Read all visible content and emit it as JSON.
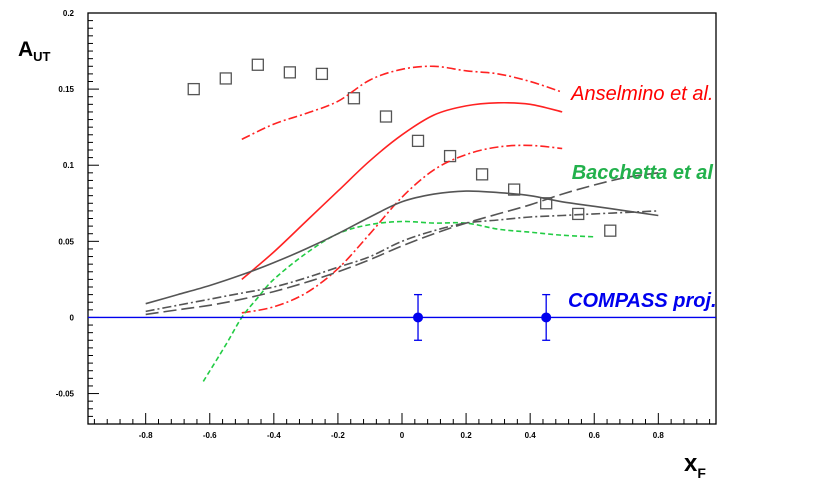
{
  "chart_data": {
    "type": "line",
    "xlabel": "x",
    "xlabel_sub": "F",
    "ylabel": "A",
    "ylabel_sub": "UT",
    "xlim": [
      -0.98,
      0.98
    ],
    "ylim": [
      -0.07,
      0.2
    ],
    "x_tick_labels": [
      {
        "value": -0.8,
        "label": "-0.8"
      },
      {
        "value": -0.6,
        "label": "-0.6"
      },
      {
        "value": -0.4,
        "label": "-0.4"
      },
      {
        "value": -0.2,
        "label": "-0.2"
      },
      {
        "value": 0,
        "label": "0"
      },
      {
        "value": 0.2,
        "label": "0.2"
      },
      {
        "value": 0.4,
        "label": "0.4"
      },
      {
        "value": 0.6,
        "label": "0.6"
      },
      {
        "value": 0.8,
        "label": "0.8"
      }
    ],
    "y_tick_labels": [
      {
        "value": -0.05,
        "label": "-0.05"
      },
      {
        "value": 0,
        "label": "0"
      },
      {
        "value": 0.05,
        "label": "0.05"
      },
      {
        "value": 0.1,
        "label": "0.1"
      },
      {
        "value": 0.15,
        "label": "0.15"
      },
      {
        "value": 0.2,
        "label": "0.2"
      }
    ],
    "grid": false,
    "annotations": [
      {
        "text": "Anselmino et al.",
        "color": "#ff0000",
        "x": 0.75,
        "y": 0.143
      },
      {
        "text": "Bacchetta et al",
        "color": "#22b14c",
        "x": 0.75,
        "y": 0.091
      },
      {
        "text": "COMPASS proj.",
        "color": "#0000ee",
        "x": 0.75,
        "y": 0.007
      }
    ],
    "series": [
      {
        "style": "squares",
        "color": "#555555",
        "x": [
          -0.65,
          -0.55,
          -0.45,
          -0.35,
          -0.25,
          -0.15,
          -0.05,
          0.05,
          0.15,
          0.25,
          0.35,
          0.45,
          0.55,
          0.65
        ],
        "y": [
          0.15,
          0.157,
          0.166,
          0.161,
          0.16,
          0.144,
          0.132,
          0.116,
          0.106,
          0.094,
          0.084,
          0.075,
          0.068,
          0.057
        ]
      },
      {
        "style": "solid",
        "color": "#ff2222",
        "x": [
          -0.5,
          -0.4,
          -0.3,
          -0.2,
          -0.1,
          0.0,
          0.1,
          0.2,
          0.3,
          0.4,
          0.5
        ],
        "y": [
          0.025,
          0.043,
          0.063,
          0.083,
          0.103,
          0.12,
          0.133,
          0.139,
          0.141,
          0.14,
          0.135
        ]
      },
      {
        "style": "dashdot",
        "color": "#ff2222",
        "x": [
          -0.5,
          -0.4,
          -0.3,
          -0.2,
          -0.1,
          0.0,
          0.1,
          0.2,
          0.3,
          0.4,
          0.5
        ],
        "y": [
          0.117,
          0.127,
          0.134,
          0.142,
          0.156,
          0.163,
          0.165,
          0.162,
          0.16,
          0.155,
          0.148
        ]
      },
      {
        "style": "dashdot",
        "color": "#ff2222",
        "x": [
          -0.5,
          -0.4,
          -0.3,
          -0.2,
          -0.1,
          0.0,
          0.1,
          0.2,
          0.3,
          0.4,
          0.5
        ],
        "y": [
          0.003,
          0.007,
          0.016,
          0.032,
          0.055,
          0.079,
          0.097,
          0.107,
          0.112,
          0.113,
          0.111
        ]
      },
      {
        "style": "dashed",
        "color": "#22cc44",
        "x": [
          -0.62,
          -0.55,
          -0.5,
          -0.45,
          -0.4,
          -0.3,
          -0.2,
          -0.1,
          0.0,
          0.1,
          0.2,
          0.3,
          0.4,
          0.5,
          0.6
        ],
        "y": [
          -0.042,
          -0.018,
          0.0,
          0.013,
          0.025,
          0.042,
          0.055,
          0.061,
          0.063,
          0.062,
          0.062,
          0.058,
          0.056,
          0.054,
          0.053
        ]
      },
      {
        "style": "solid",
        "color": "#555555",
        "x": [
          -0.8,
          -0.7,
          -0.6,
          -0.5,
          -0.4,
          -0.3,
          -0.2,
          -0.1,
          0.0,
          0.1,
          0.2,
          0.3,
          0.4,
          0.5,
          0.6,
          0.7,
          0.8
        ],
        "y": [
          0.009,
          0.015,
          0.021,
          0.028,
          0.036,
          0.045,
          0.055,
          0.066,
          0.076,
          0.081,
          0.083,
          0.082,
          0.08,
          0.076,
          0.073,
          0.07,
          0.067
        ]
      },
      {
        "style": "dashdot",
        "color": "#555555",
        "x": [
          -0.8,
          -0.7,
          -0.6,
          -0.5,
          -0.4,
          -0.3,
          -0.2,
          -0.1,
          0.0,
          0.1,
          0.2,
          0.3,
          0.4,
          0.5,
          0.6,
          0.7,
          0.8
        ],
        "y": [
          0.004,
          0.008,
          0.012,
          0.016,
          0.02,
          0.026,
          0.033,
          0.04,
          0.05,
          0.057,
          0.062,
          0.064,
          0.066,
          0.067,
          0.068,
          0.069,
          0.07
        ]
      },
      {
        "style": "longdash",
        "color": "#555555",
        "x": [
          -0.8,
          -0.7,
          -0.6,
          -0.5,
          -0.4,
          -0.3,
          -0.2,
          -0.1,
          0.0,
          0.1,
          0.2,
          0.3,
          0.4,
          0.5,
          0.6,
          0.7,
          0.8
        ],
        "y": [
          0.002,
          0.005,
          0.008,
          0.012,
          0.017,
          0.023,
          0.03,
          0.038,
          0.047,
          0.055,
          0.062,
          0.068,
          0.074,
          0.081,
          0.087,
          0.092,
          0.095
        ]
      },
      {
        "style": "solid",
        "color": "#0000ee",
        "x": [
          -0.98,
          0.98
        ],
        "y": [
          0,
          0
        ]
      },
      {
        "style": "points_errorbars",
        "color": "#0000ee",
        "x": [
          0.05,
          0.45
        ],
        "y": [
          0,
          0
        ],
        "err": [
          0.015,
          0.015
        ]
      }
    ]
  }
}
